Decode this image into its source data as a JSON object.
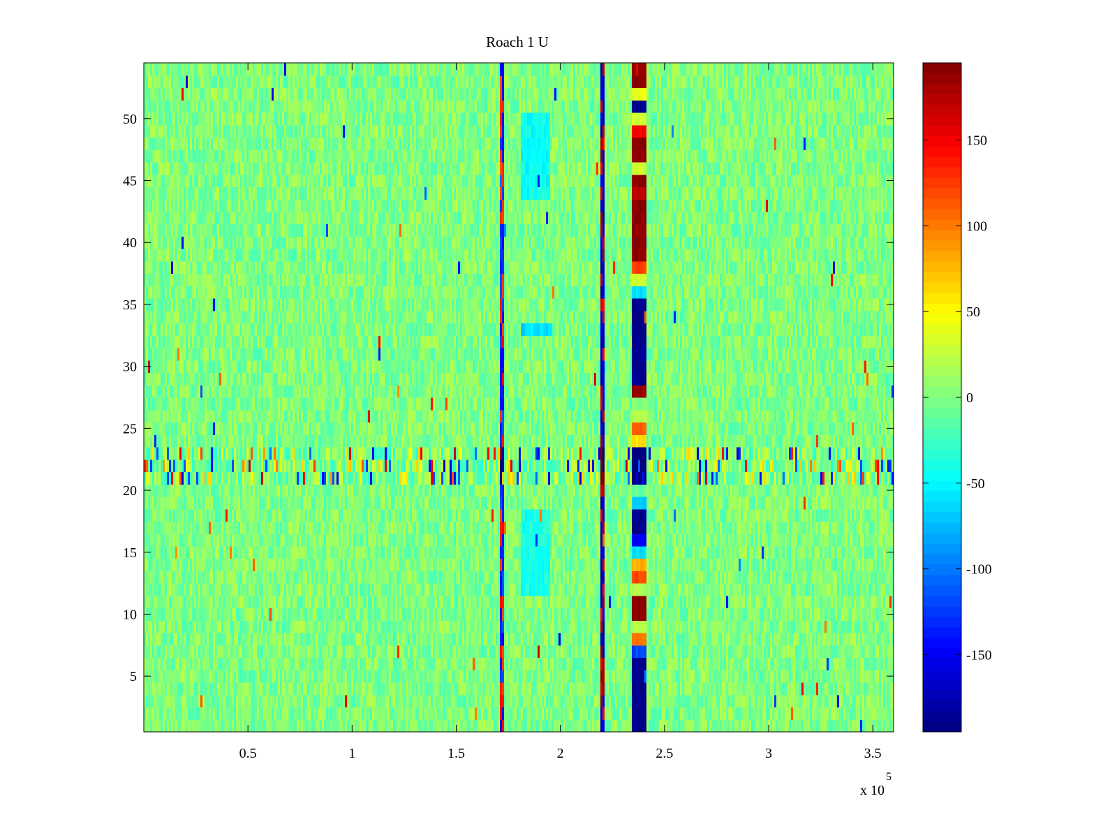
{
  "chart_data": {
    "type": "heatmap",
    "title": "Roach 1 U",
    "xlabel": "",
    "ylabel": "",
    "xlim": [
      0,
      360000
    ],
    "ylim": [
      0.5,
      54.5
    ],
    "x_tick_values": [
      50000,
      100000,
      150000,
      200000,
      250000,
      300000,
      350000
    ],
    "x_tick_labels": [
      "0.5",
      "1",
      "1.5",
      "2",
      "2.5",
      "3",
      "3.5"
    ],
    "x_multiplier_base": "x 10",
    "x_multiplier_exponent": "5",
    "y_tick_values": [
      5,
      10,
      15,
      20,
      25,
      30,
      35,
      40,
      45,
      50
    ],
    "y_tick_labels": [
      "5",
      "10",
      "15",
      "20",
      "25",
      "30",
      "35",
      "40",
      "45",
      "50"
    ],
    "rows": 54,
    "colormap": "jet",
    "clim": [
      -195,
      195
    ],
    "colorbar": {
      "tick_values": [
        -150,
        -100,
        -50,
        0,
        50,
        100,
        150
      ],
      "tick_labels": [
        "-150",
        "-100",
        "-50",
        "0",
        "50",
        "100",
        "150"
      ]
    },
    "background_value": 0,
    "noise_amplitude": 22,
    "features": [
      {
        "description": "strong alternating band",
        "x_range": [
          234000,
          241000
        ],
        "segments": [
          {
            "y": [
              0.5,
              6.5
            ],
            "value": -190
          },
          {
            "y": [
              6.5,
              7.5
            ],
            "value": -120
          },
          {
            "y": [
              7.5,
              8.5
            ],
            "value": 100
          },
          {
            "y": [
              8.5,
              9.5
            ],
            "value": 20
          },
          {
            "y": [
              9.5,
              11.5
            ],
            "value": 190
          },
          {
            "y": [
              11.5,
              12.5
            ],
            "value": 20
          },
          {
            "y": [
              12.5,
              13.5
            ],
            "value": 120
          },
          {
            "y": [
              13.5,
              14.5
            ],
            "value": 80
          },
          {
            "y": [
              14.5,
              15.5
            ],
            "value": -60
          },
          {
            "y": [
              15.5,
              16.5
            ],
            "value": -150
          },
          {
            "y": [
              16.5,
              18.5
            ],
            "value": -190
          },
          {
            "y": [
              18.5,
              19.5
            ],
            "value": -70
          },
          {
            "y": [
              19.5,
              20.5
            ],
            "value": -10
          },
          {
            "y": [
              20.5,
              23.5
            ],
            "value": -190
          },
          {
            "y": [
              23.5,
              24.5
            ],
            "value": 60
          },
          {
            "y": [
              24.5,
              25.5
            ],
            "value": 110
          },
          {
            "y": [
              25.5,
              26.5
            ],
            "value": 20
          },
          {
            "y": [
              26.5,
              27.5
            ],
            "value": 0
          },
          {
            "y": [
              27.5,
              28.5
            ],
            "value": 185
          },
          {
            "y": [
              28.5,
              35.5
            ],
            "value": -190
          },
          {
            "y": [
              35.5,
              36.5
            ],
            "value": -60
          },
          {
            "y": [
              36.5,
              37.5
            ],
            "value": 30
          },
          {
            "y": [
              37.5,
              38.5
            ],
            "value": 120
          },
          {
            "y": [
              38.5,
              43.5
            ],
            "value": 190
          },
          {
            "y": [
              43.5,
              44.5
            ],
            "value": 170
          },
          {
            "y": [
              44.5,
              45.5
            ],
            "value": 190
          },
          {
            "y": [
              45.5,
              46.5
            ],
            "value": 30
          },
          {
            "y": [
              46.5,
              48.5
            ],
            "value": 190
          },
          {
            "y": [
              48.5,
              49.5
            ],
            "value": 150
          },
          {
            "y": [
              49.5,
              50.5
            ],
            "value": 30
          },
          {
            "y": [
              50.5,
              51.5
            ],
            "value": -190
          },
          {
            "y": [
              51.5,
              52.5
            ],
            "value": 40
          },
          {
            "y": [
              52.5,
              54.5
            ],
            "value": 190
          }
        ]
      },
      {
        "description": "thin line near 2.2e5",
        "x_range": [
          219000,
          221500
        ],
        "pattern": "mixed",
        "amplitude": 190
      },
      {
        "description": "thin line near 1.72e5",
        "x_range": [
          171200,
          172500
        ],
        "pattern": "mixed",
        "amplitude": 150
      },
      {
        "description": "noisy rows 21-23",
        "y_range": [
          20.5,
          23.5
        ],
        "pattern": "spikes",
        "amplitude": 170
      },
      {
        "description": "cyan patch",
        "x_range": [
          181000,
          195000
        ],
        "y_range": [
          43.5,
          50.5
        ],
        "value": -45
      },
      {
        "description": "cyan patch",
        "x_range": [
          181000,
          195000
        ],
        "y_range": [
          11.5,
          18.5
        ],
        "value": -40
      },
      {
        "description": "cyan patch",
        "x_range": [
          181000,
          196000
        ],
        "y_range": [
          32.5,
          33.5
        ],
        "value": -60
      }
    ]
  }
}
